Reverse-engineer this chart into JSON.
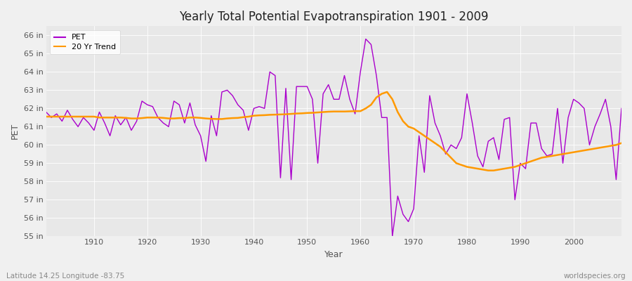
{
  "title": "Yearly Total Potential Evapotranspiration 1901 - 2009",
  "xlabel": "Year",
  "ylabel": "PET",
  "xlim": [
    1901,
    2009
  ],
  "ylim": [
    55,
    66.5
  ],
  "yticks": [
    55,
    56,
    57,
    58,
    59,
    60,
    61,
    62,
    63,
    64,
    65,
    66
  ],
  "xticks": [
    1910,
    1920,
    1930,
    1940,
    1950,
    1960,
    1970,
    1980,
    1990,
    2000
  ],
  "fig_bg_color": "#f0f0f0",
  "plot_bg_color": "#e8e8e8",
  "pet_color": "#aa00cc",
  "trend_color": "#ff9900",
  "caption_left": "Latitude 14.25 Longitude -83.75",
  "caption_right": "worldspecies.org",
  "years": [
    1901,
    1902,
    1903,
    1904,
    1905,
    1906,
    1907,
    1908,
    1909,
    1910,
    1911,
    1912,
    1913,
    1914,
    1915,
    1916,
    1917,
    1918,
    1919,
    1920,
    1921,
    1922,
    1923,
    1924,
    1925,
    1926,
    1927,
    1928,
    1929,
    1930,
    1931,
    1932,
    1933,
    1934,
    1935,
    1936,
    1937,
    1938,
    1939,
    1940,
    1941,
    1942,
    1943,
    1944,
    1945,
    1946,
    1947,
    1948,
    1949,
    1950,
    1951,
    1952,
    1953,
    1954,
    1955,
    1956,
    1957,
    1958,
    1959,
    1960,
    1961,
    1962,
    1963,
    1964,
    1965,
    1966,
    1967,
    1968,
    1969,
    1970,
    1971,
    1972,
    1973,
    1974,
    1975,
    1976,
    1977,
    1978,
    1979,
    1980,
    1981,
    1982,
    1983,
    1984,
    1985,
    1986,
    1987,
    1988,
    1989,
    1990,
    1991,
    1992,
    1993,
    1994,
    1995,
    1996,
    1997,
    1998,
    1999,
    2000,
    2001,
    2002,
    2003,
    2004,
    2005,
    2006,
    2007,
    2008,
    2009
  ],
  "pet_values": [
    61.8,
    61.5,
    61.7,
    61.3,
    61.9,
    61.4,
    61.0,
    61.5,
    61.2,
    60.8,
    61.8,
    61.2,
    60.5,
    61.6,
    61.1,
    61.5,
    60.8,
    61.3,
    62.4,
    62.2,
    62.1,
    61.5,
    61.2,
    61.0,
    62.4,
    62.2,
    61.2,
    62.3,
    61.1,
    60.5,
    59.1,
    61.6,
    60.5,
    62.9,
    63.0,
    62.7,
    62.2,
    61.9,
    60.8,
    62.0,
    62.1,
    62.0,
    64.0,
    63.8,
    58.2,
    63.1,
    58.1,
    63.2,
    63.2,
    63.2,
    62.5,
    59.0,
    62.8,
    63.3,
    62.5,
    62.5,
    63.8,
    62.5,
    61.7,
    64.0,
    65.8,
    65.5,
    63.8,
    61.5,
    61.5,
    55.0,
    57.2,
    56.2,
    55.8,
    56.5,
    60.5,
    58.5,
    62.7,
    61.2,
    60.5,
    59.5,
    60.0,
    59.8,
    60.4,
    62.8,
    61.2,
    59.4,
    58.8,
    60.2,
    60.4,
    59.2,
    61.4,
    61.5,
    57.0,
    59.0,
    58.7,
    61.2,
    61.2,
    59.8,
    59.4,
    59.5,
    62.0,
    59.0,
    61.5,
    62.5,
    62.3,
    62.0,
    60.0,
    61.0,
    61.7,
    62.5,
    61.0,
    58.1,
    62.0
  ],
  "trend_values": [
    61.55,
    61.55,
    61.55,
    61.55,
    61.55,
    61.55,
    61.55,
    61.55,
    61.55,
    61.55,
    61.5,
    61.5,
    61.5,
    61.5,
    61.5,
    61.48,
    61.45,
    61.45,
    61.47,
    61.5,
    61.5,
    61.5,
    61.48,
    61.45,
    61.45,
    61.47,
    61.47,
    61.5,
    61.5,
    61.48,
    61.45,
    61.43,
    61.42,
    61.42,
    61.45,
    61.47,
    61.48,
    61.52,
    61.55,
    61.6,
    61.62,
    61.63,
    61.65,
    61.66,
    61.67,
    61.68,
    61.7,
    61.72,
    61.73,
    61.75,
    61.76,
    61.78,
    61.8,
    61.82,
    61.83,
    61.83,
    61.83,
    61.84,
    61.85,
    61.85,
    62.0,
    62.2,
    62.6,
    62.8,
    62.9,
    62.5,
    61.8,
    61.3,
    61.0,
    60.9,
    60.7,
    60.5,
    60.3,
    60.1,
    59.9,
    59.6,
    59.3,
    59.0,
    58.9,
    58.8,
    58.75,
    58.7,
    58.65,
    58.6,
    58.6,
    58.65,
    58.7,
    58.75,
    58.8,
    58.9,
    59.0,
    59.1,
    59.2,
    59.3,
    59.35,
    59.4,
    59.45,
    59.5,
    59.55,
    59.6,
    59.65,
    59.7,
    59.75,
    59.8,
    59.85,
    59.9,
    59.95,
    60.0,
    60.1
  ]
}
